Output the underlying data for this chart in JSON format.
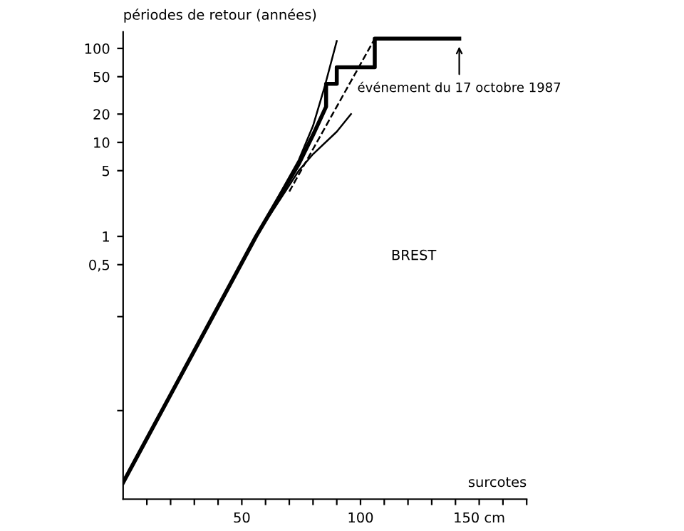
{
  "chart_data": {
    "type": "line",
    "xlabel": "surcotes",
    "ylabel": "périodes de retour (années)",
    "log": "y",
    "grid": false,
    "legend": false,
    "xlim": [
      0,
      170
    ],
    "ylim": [
      0.0016,
      150
    ],
    "xticks": [
      {
        "value": 10,
        "label": null
      },
      {
        "value": 20,
        "label": null
      },
      {
        "value": 30,
        "label": null
      },
      {
        "value": 40,
        "label": null
      },
      50,
      {
        "value": 60,
        "label": null
      },
      {
        "value": 70,
        "label": null
      },
      {
        "value": 80,
        "label": null
      },
      {
        "value": 90,
        "label": null
      },
      100,
      {
        "value": 110,
        "label": null
      },
      {
        "value": 120,
        "label": null
      },
      {
        "value": 130,
        "label": null
      },
      {
        "value": 140,
        "label": null
      },
      {
        "value": 150,
        "label": "150 cm"
      },
      {
        "value": 160,
        "label": null
      },
      {
        "value": 170,
        "label": null
      }
    ],
    "yticks": [
      {
        "value": 0.014,
        "label": null
      },
      {
        "value": 0.14,
        "label": null
      },
      {
        "value": 0.5,
        "label": "0,5"
      },
      1,
      5,
      10,
      20,
      50,
      100
    ],
    "series": [
      {
        "color": "#000000",
        "line_style": "solid",
        "x": [
          0,
          56,
          74,
          80,
          85.5,
          85.5,
          90,
          90,
          106,
          106,
          141.6
        ],
        "values": [
          0.0024,
          1,
          5.9,
          12,
          24,
          42,
          42,
          63,
          63,
          127,
          127
        ]
      },
      {
        "color": "#000000",
        "line_style": "solid",
        "x": [
          0,
          56,
          74,
          80,
          85,
          90
        ],
        "values": [
          0.0024,
          1,
          6.5,
          15,
          40,
          120
        ]
      },
      {
        "color": "#000000",
        "line_style": "solid",
        "x": [
          0,
          56,
          74,
          80,
          90,
          96
        ],
        "values": [
          0.0024,
          1,
          5,
          7.5,
          13,
          20
        ]
      },
      {
        "color": "#000000",
        "line_style": "dashed",
        "x": [
          70,
          106
        ],
        "values": [
          3,
          127
        ]
      }
    ],
    "annotations": [
      {
        "text": "événement du 17 octobre 1987",
        "x": 141.6,
        "y": 127
      },
      "BREST"
    ]
  }
}
